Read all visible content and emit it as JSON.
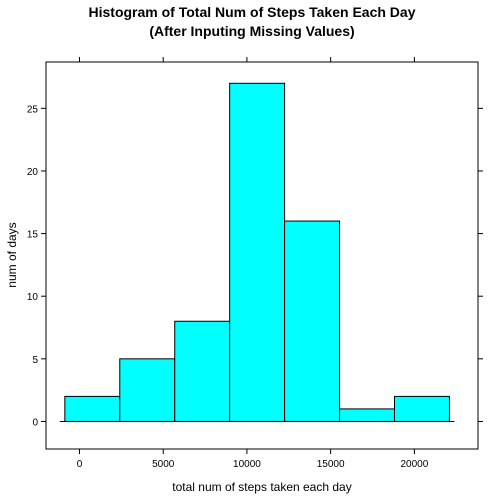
{
  "chart_data": {
    "type": "bar",
    "title_lines": [
      "Histogram of Total Num of Steps Taken Each Day",
      "(After Inputing Missing Values)"
    ],
    "xlabel": "total num of steps taken each day",
    "ylabel": "num of days",
    "bins": [
      {
        "start": -875,
        "end": 2406,
        "count": 2
      },
      {
        "start": 2406,
        "end": 5688,
        "count": 5
      },
      {
        "start": 5688,
        "end": 8969,
        "count": 8
      },
      {
        "start": 8969,
        "end": 12250,
        "count": 27
      },
      {
        "start": 12250,
        "end": 15531,
        "count": 16
      },
      {
        "start": 15531,
        "end": 18813,
        "count": 1
      },
      {
        "start": 18813,
        "end": 22094,
        "count": 2
      }
    ],
    "xlim": [
      -2000,
      23800
    ],
    "ylim": [
      -2.2,
      28.7
    ],
    "xticks": [
      0,
      5000,
      10000,
      15000,
      20000
    ],
    "xtick_labels": [
      "0",
      "5000",
      "10000",
      "15000",
      "20000"
    ],
    "yticks": [
      0,
      5,
      10,
      15,
      20,
      25
    ],
    "ytick_labels": [
      "0",
      "5",
      "10",
      "15",
      "20",
      "25"
    ],
    "bar_fill": "#00FFFF",
    "bar_stroke": "#000000",
    "grid": false,
    "legend": "none"
  }
}
